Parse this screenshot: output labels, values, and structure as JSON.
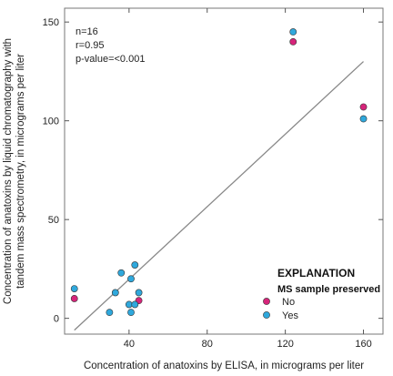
{
  "chart_data": {
    "type": "scatter",
    "xlabel": "Concentration of anatoxins by ELISA, in micrograms per liter",
    "ylabel_lines": [
      "Concentration of anatoxins by liquid chromatography with",
      "tandem mass spectrometry, in micrograms per liter"
    ],
    "xlim": [
      7,
      170
    ],
    "ylim": [
      -8,
      157
    ],
    "xticks": [
      40,
      80,
      120,
      160
    ],
    "xtick_labels": [
      "40",
      "80",
      "120",
      "160"
    ],
    "yticks": [
      0,
      50,
      100,
      150
    ],
    "ytick_labels": [
      "0",
      "50",
      "100",
      "150"
    ],
    "grid": false,
    "stats": [
      "n=16",
      "r=0.95",
      "p-value=<0.001"
    ],
    "trend_line": {
      "x": [
        12,
        160
      ],
      "y": [
        -6,
        130
      ],
      "color": "#888888"
    },
    "legend": {
      "title": "EXPLANATION",
      "subtitle": "MS sample preserved",
      "placement": "bottom-right"
    },
    "series": [
      {
        "name": "No",
        "color": "#d6247a",
        "points": [
          {
            "x": 12,
            "y": 10
          },
          {
            "x": 45,
            "y": 9
          },
          {
            "x": 124,
            "y": 140
          },
          {
            "x": 160,
            "y": 107
          }
        ]
      },
      {
        "name": "Yes",
        "color": "#2fa8dc",
        "points": [
          {
            "x": 12,
            "y": 15
          },
          {
            "x": 30,
            "y": 3
          },
          {
            "x": 33,
            "y": 13
          },
          {
            "x": 36,
            "y": 23
          },
          {
            "x": 40,
            "y": 7
          },
          {
            "x": 41,
            "y": 3
          },
          {
            "x": 41,
            "y": 20
          },
          {
            "x": 43,
            "y": 7
          },
          {
            "x": 43,
            "y": 27
          },
          {
            "x": 45,
            "y": 13
          },
          {
            "x": 124,
            "y": 145
          },
          {
            "x": 160,
            "y": 101
          }
        ]
      }
    ]
  }
}
